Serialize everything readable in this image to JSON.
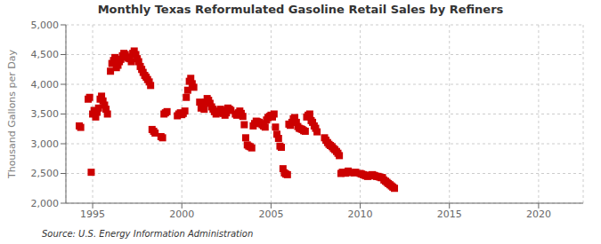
{
  "chart_data": {
    "type": "scatter",
    "title": "Monthly Texas Reformulated Gasoline Retail Sales by Refiners",
    "ylabel": "Thousand Gallons per Day",
    "annotation": "Source: U.S. Energy Information Administration",
    "color": "#cc0000",
    "marker": "square",
    "grid": true,
    "xlim": [
      1993.5,
      2022.5
    ],
    "ylim": [
      2000,
      5000
    ],
    "xticks": [
      1995,
      2000,
      2005,
      2010,
      2015,
      2020
    ],
    "yticks": [
      {
        "value": 2000,
        "label": "2,000"
      },
      {
        "value": 2500,
        "label": "2,500"
      },
      {
        "value": 3000,
        "label": "3,000"
      },
      {
        "value": 3500,
        "label": "3,500"
      },
      {
        "value": 4000,
        "label": "4,000"
      },
      {
        "value": 4500,
        "label": "4,500"
      },
      {
        "value": 5000,
        "label": "5,000"
      }
    ],
    "x": [
      1994.25,
      1994.33,
      1994.75,
      1994.83,
      1994.92,
      1995.0,
      1995.08,
      1995.17,
      1995.25,
      1995.33,
      1995.42,
      1995.5,
      1995.58,
      1995.67,
      1995.75,
      1995.83,
      1996.0,
      1996.08,
      1996.17,
      1996.25,
      1996.33,
      1996.42,
      1996.5,
      1996.58,
      1996.67,
      1996.75,
      1996.83,
      1996.92,
      1997.0,
      1997.08,
      1997.17,
      1997.25,
      1997.33,
      1997.42,
      1997.5,
      1997.58,
      1997.67,
      1997.75,
      1997.83,
      1997.92,
      1998.0,
      1998.08,
      1998.17,
      1998.25,
      1998.33,
      1998.42,
      1998.5,
      1998.83,
      1998.92,
      1999.0,
      1999.08,
      1999.17,
      1999.75,
      1999.83,
      1999.92,
      2000.0,
      2000.08,
      2000.17,
      2000.25,
      2000.33,
      2000.42,
      2000.5,
      2000.58,
      2000.67,
      2001.0,
      2001.08,
      2001.17,
      2001.25,
      2001.33,
      2001.42,
      2001.5,
      2001.58,
      2001.67,
      2001.75,
      2001.83,
      2001.92,
      2002.0,
      2002.08,
      2002.17,
      2002.25,
      2002.33,
      2002.42,
      2002.5,
      2002.58,
      2002.67,
      2002.75,
      2003.0,
      2003.08,
      2003.17,
      2003.25,
      2003.33,
      2003.42,
      2003.5,
      2003.58,
      2003.67,
      2003.75,
      2003.83,
      2003.92,
      2004.0,
      2004.08,
      2004.17,
      2004.25,
      2004.33,
      2004.42,
      2004.5,
      2004.58,
      2004.67,
      2004.75,
      2004.83,
      2004.92,
      2005.0,
      2005.08,
      2005.17,
      2005.25,
      2005.33,
      2005.42,
      2005.5,
      2005.58,
      2005.67,
      2005.75,
      2005.83,
      2005.92,
      2006.0,
      2006.08,
      2006.17,
      2006.25,
      2006.33,
      2006.42,
      2006.5,
      2006.58,
      2006.67,
      2006.75,
      2006.83,
      2006.92,
      2007.0,
      2007.08,
      2007.17,
      2007.25,
      2007.33,
      2007.42,
      2007.5,
      2007.58,
      2008.0,
      2008.08,
      2008.17,
      2008.25,
      2008.33,
      2008.42,
      2008.5,
      2008.58,
      2008.67,
      2008.75,
      2008.83,
      2008.92,
      2009.0,
      2009.08,
      2009.17,
      2009.25,
      2009.33,
      2009.42,
      2009.67,
      2009.75,
      2010.0,
      2010.08,
      2010.17,
      2010.25,
      2010.33,
      2010.42,
      2010.5,
      2010.58,
      2010.67,
      2010.75,
      2010.83,
      2010.92,
      2011.0,
      2011.08,
      2011.17,
      2011.25,
      2011.33,
      2011.42,
      2011.5,
      2011.58,
      2011.67,
      2011.75,
      2011.83,
      2011.92
    ],
    "values": [
      3300,
      3275,
      3750,
      3780,
      2520,
      3500,
      3560,
      3450,
      3530,
      3600,
      3750,
      3800,
      3720,
      3650,
      3580,
      3500,
      4220,
      4350,
      4400,
      4450,
      4280,
      4320,
      4380,
      4420,
      4480,
      4520,
      4500,
      4460,
      4440,
      4430,
      4380,
      4520,
      4560,
      4500,
      4430,
      4380,
      4300,
      4250,
      4200,
      4150,
      4120,
      4080,
      4040,
      3980,
      3240,
      3210,
      3180,
      3120,
      3100,
      3500,
      3520,
      3540,
      3470,
      3500,
      3520,
      3490,
      3510,
      3550,
      3780,
      3900,
      4050,
      4100,
      4010,
      3950,
      3700,
      3600,
      3620,
      3580,
      3700,
      3760,
      3730,
      3680,
      3620,
      3580,
      3540,
      3500,
      3520,
      3550,
      3580,
      3560,
      3510,
      3480,
      3520,
      3600,
      3580,
      3560,
      3500,
      3480,
      3520,
      3550,
      3510,
      3460,
      3320,
      3100,
      2980,
      2960,
      2950,
      2930,
      3300,
      3340,
      3380,
      3370,
      3360,
      3340,
      3320,
      3300,
      3280,
      3400,
      3440,
      3460,
      3480,
      3450,
      3500,
      3280,
      3160,
      3090,
      2960,
      2940,
      2580,
      2510,
      2490,
      2480,
      3330,
      3310,
      3360,
      3420,
      3440,
      3360,
      3290,
      3260,
      3250,
      3240,
      3220,
      3210,
      3450,
      3480,
      3500,
      3390,
      3360,
      3300,
      3260,
      3200,
      3100,
      3060,
      3020,
      2990,
      2970,
      2950,
      2920,
      2900,
      2870,
      2840,
      2800,
      2500,
      2520,
      2510,
      2505,
      2520,
      2540,
      2515,
      2510,
      2520,
      2500,
      2490,
      2480,
      2470,
      2460,
      2450,
      2460,
      2470,
      2480,
      2470,
      2460,
      2450,
      2450,
      2440,
      2430,
      2430,
      2390,
      2370,
      2350,
      2330,
      2310,
      2290,
      2270,
      2250
    ]
  }
}
